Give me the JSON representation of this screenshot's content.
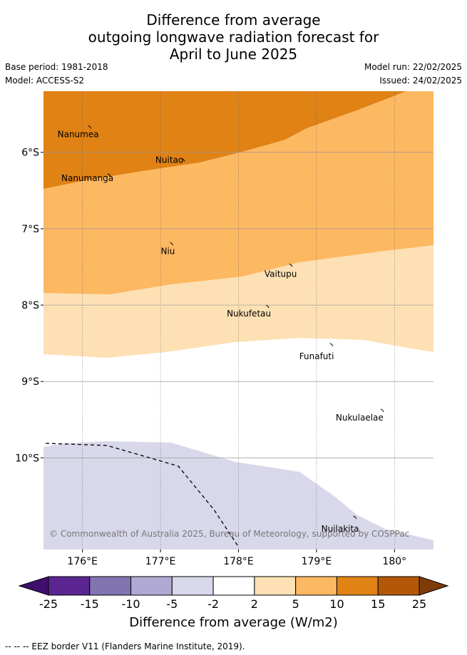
{
  "title": {
    "line1": "Difference from average",
    "line2": "outgoing longwave radiation forecast for",
    "line3": "April to June 2025"
  },
  "meta": {
    "base_period": "Base period: 1981-2018",
    "model": "Model: ACCESS-S2",
    "model_run": "Model run: 22/02/2025",
    "issued": "Issued: 24/02/2025"
  },
  "map": {
    "lon_range": [
      175.5,
      180.5
    ],
    "lat_range": [
      -11.2,
      -5.2
    ],
    "lon_ticks": [
      {
        "value": 176,
        "label": "176°E"
      },
      {
        "value": 177,
        "label": "177°E"
      },
      {
        "value": 178,
        "label": "178°E"
      },
      {
        "value": 179,
        "label": "179°E"
      },
      {
        "value": 180,
        "label": "180°"
      }
    ],
    "lat_ticks": [
      {
        "value": -6,
        "label": "6°S"
      },
      {
        "value": -7,
        "label": "7°S"
      },
      {
        "value": -8,
        "label": "8°S"
      },
      {
        "value": -9,
        "label": "9°S"
      },
      {
        "value": -10,
        "label": "10°S"
      }
    ],
    "islands": [
      {
        "name": "Nanumea",
        "lon": 176.1,
        "lat": -5.67
      },
      {
        "name": "Nuitao",
        "lon": 177.3,
        "lat": -6.1
      },
      {
        "name": "Nanumanga",
        "lon": 176.35,
        "lat": -6.3
      },
      {
        "name": "Niu",
        "lon": 177.15,
        "lat": -7.2
      },
      {
        "name": "Vaitupu",
        "lon": 178.68,
        "lat": -7.48
      },
      {
        "name": "Nukufetau",
        "lon": 178.38,
        "lat": -8.02
      },
      {
        "name": "Funafuti",
        "lon": 179.2,
        "lat": -8.52
      },
      {
        "name": "Nukulaelae",
        "lon": 179.85,
        "lat": -9.38
      },
      {
        "name": "Nuilakita",
        "lon": 179.5,
        "lat": -10.78
      }
    ],
    "copyright": "© Commonwealth of Australia 2025, Bureau of Meteorology, supported by COSPPac"
  },
  "legend": {
    "title": "Difference from average (W/m2)",
    "boundaries": [
      "-25",
      "-15",
      "-10",
      "-5",
      "-2",
      "2",
      "5",
      "10",
      "15",
      "25"
    ],
    "colors": [
      "#3f0f6b",
      "#5a2590",
      "#8274b0",
      "#b0a9d3",
      "#d8d8ea",
      "#ffffff",
      "#fde0b4",
      "#fdb862",
      "#e08214",
      "#b35806",
      "#7f3b08"
    ]
  },
  "footnote": "-- -- -- EEZ border V11 (Flanders Marine Institute, 2019)."
}
